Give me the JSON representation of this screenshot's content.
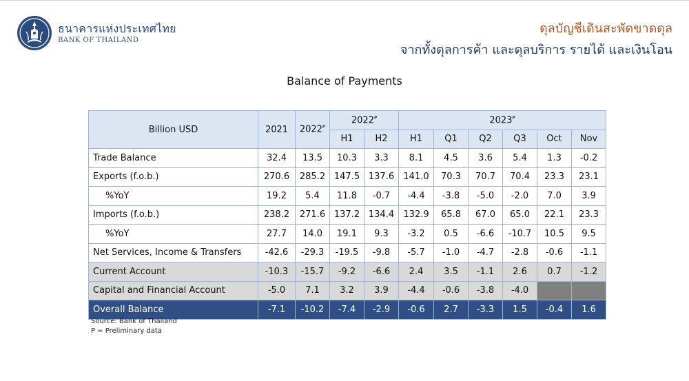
{
  "brand": {
    "name_th": "ธนาคารแห่งประเทศไทย",
    "name_en": "BANK OF THAILAND"
  },
  "header": {
    "line1": "ดุลบัญชีเดินสะพัดขาดดุล",
    "line2": "จากทั้งดุลการค้า และดุลบริการ รายได้ และเงินโอน"
  },
  "title": "Balance of Payments",
  "table": {
    "unit_label": "Billion USD",
    "col_2021": "2021",
    "col_2022": "2022",
    "group_2022": "2022",
    "group_2023": "2023",
    "prelim_mark": "P",
    "sub_2022": [
      "H1",
      "H2"
    ],
    "sub_2023": [
      "H1",
      "Q1",
      "Q2",
      "Q3",
      "Oct",
      "Nov"
    ],
    "rows": [
      {
        "label": "Trade Balance",
        "values": [
          "32.4",
          "13.5",
          "10.3",
          "3.3",
          "8.1",
          "4.5",
          "3.6",
          "5.4",
          "1.3",
          "-0.2"
        ]
      },
      {
        "label": "Exports (f.o.b.)",
        "values": [
          "270.6",
          "285.2",
          "147.5",
          "137.6",
          "141.0",
          "70.3",
          "70.7",
          "70.4",
          "23.3",
          "23.1"
        ]
      },
      {
        "label": "%YoY",
        "values": [
          "19.2",
          "5.4",
          "11.8",
          "-0.7",
          "-4.4",
          "-3.8",
          "-5.0",
          "-2.0",
          "7.0",
          "3.9"
        ]
      },
      {
        "label": "Imports (f.o.b.)",
        "values": [
          "238.2",
          "271.6",
          "137.2",
          "134.4",
          "132.9",
          "65.8",
          "67.0",
          "65.0",
          "22.1",
          "23.3"
        ]
      },
      {
        "label": "%YoY",
        "values": [
          "27.7",
          "14.0",
          "19.1",
          "9.3",
          "-3.2",
          "0.5",
          "-6.6",
          "-10.7",
          "10.5",
          "9.5"
        ]
      },
      {
        "label": "Net Services, Income & Transfers",
        "values": [
          "-42.6",
          "-29.3",
          "-19.5",
          "-9.8",
          "-5.7",
          "-1.0",
          "-4.7",
          "-2.8",
          "-0.6",
          "-1.1"
        ]
      },
      {
        "label": "Current Account",
        "values": [
          "-10.3",
          "-15.7",
          "-9.2",
          "-6.6",
          "2.4",
          "3.5",
          "-1.1",
          "2.6",
          "0.7",
          "-1.2"
        ]
      },
      {
        "label": "Capital and Financial Account",
        "values": [
          "-5.0",
          "7.1",
          "3.2",
          "3.9",
          "-4.4",
          "-0.6",
          "-3.8",
          "-4.0",
          "",
          ""
        ]
      },
      {
        "label": "Overall Balance",
        "values": [
          "-7.1",
          "-10.2",
          "-7.4",
          "-2.9",
          "-0.6",
          "2.7",
          "-3.3",
          "1.5",
          "-0.4",
          "1.6"
        ]
      }
    ]
  },
  "footnotes": {
    "source": "Source: Bank of Thailand",
    "prelim": "P = Preliminary data"
  },
  "colors": {
    "header_fill": "#dce6f2",
    "grid": "#9fb4d2",
    "grey_row": "#d9d9d9",
    "blank_cell": "#808080",
    "overall_fill": "#2f4f86",
    "title_accent": "#b5561f",
    "title_navy": "#1f3864",
    "logo_navy": "#2b4a7e"
  }
}
